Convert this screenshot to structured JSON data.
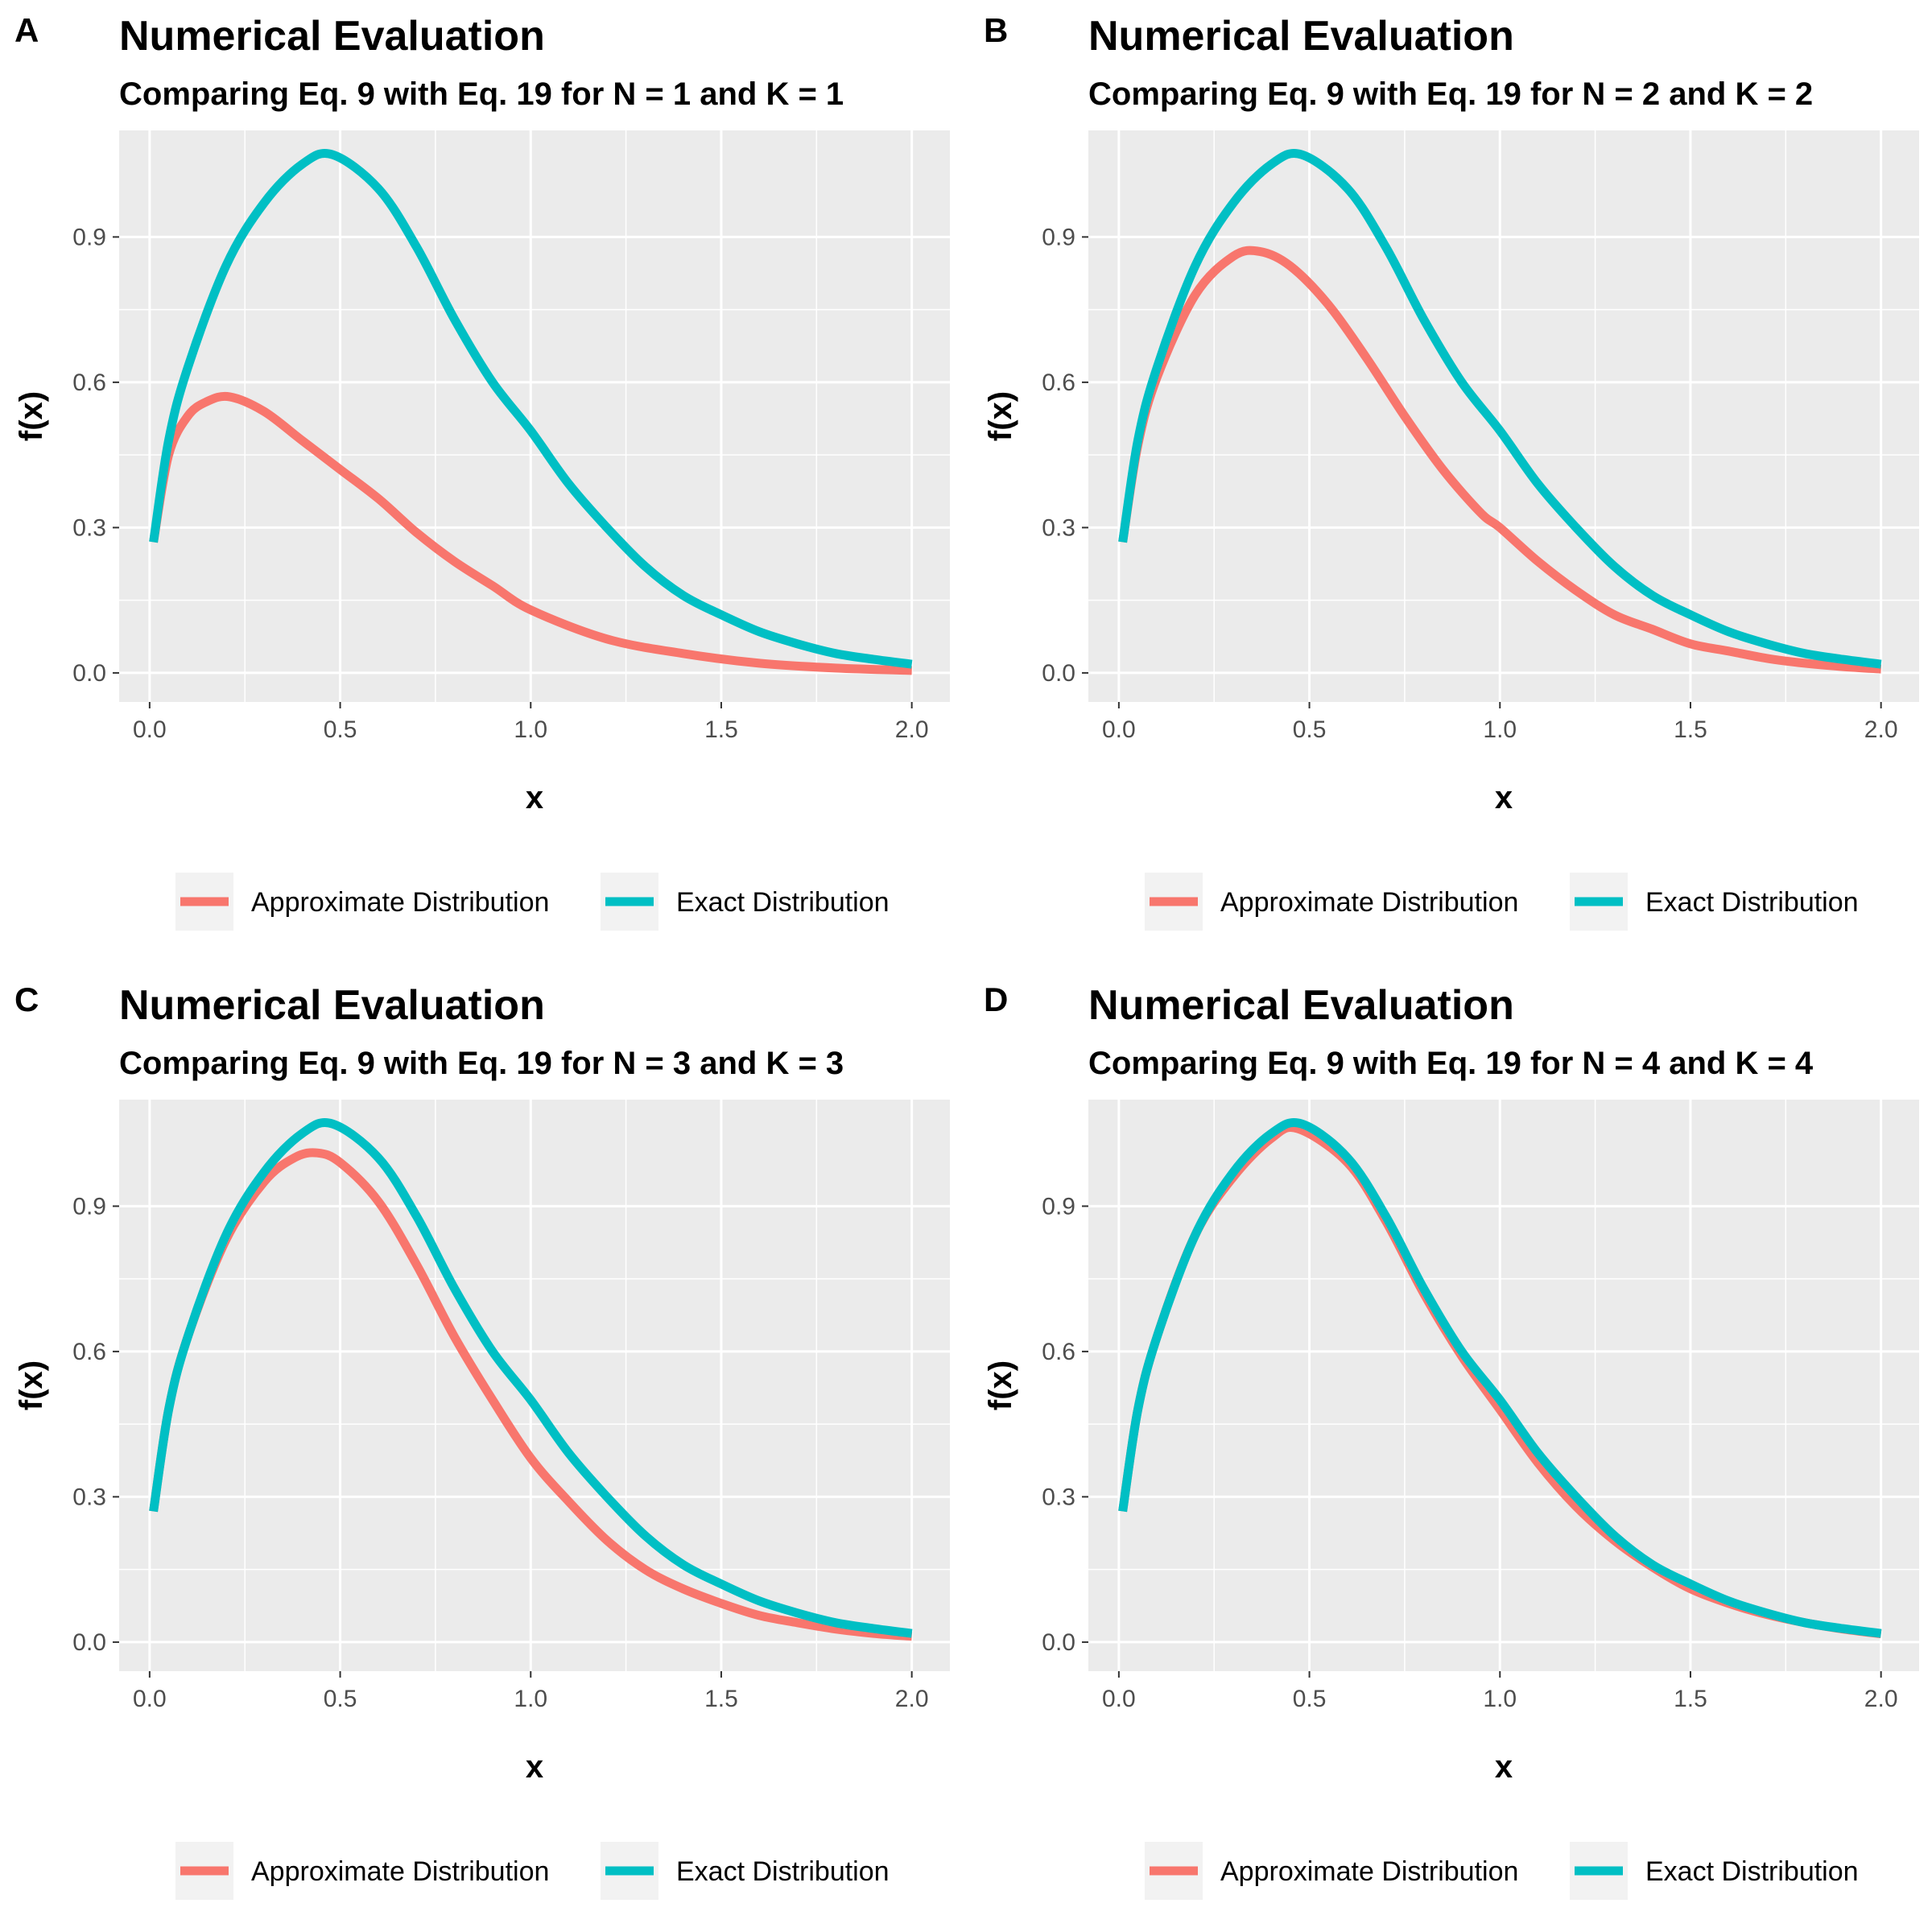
{
  "colors": {
    "approximate": "#F8766D",
    "exact": "#00BFC4",
    "panel_background": "#EBEBEB",
    "grid": "#FFFFFF",
    "legend_key_background": "#F2F2F2"
  },
  "chart_data": [
    {
      "tag": "A",
      "type": "line",
      "title": "Numerical Evaluation",
      "subtitle": "Comparing Eq. 9 with Eq. 19 for N = 1 and K = 1",
      "xlabel": "x",
      "ylabel": "f(x)",
      "xlim": [
        -0.08,
        2.1
      ],
      "ylim": [
        -0.06,
        1.12
      ],
      "x_ticks": [
        0.0,
        0.5,
        1.0,
        1.5,
        2.0
      ],
      "x_tick_labels": [
        "0.0",
        "0.5",
        "1.0",
        "1.5",
        "2.0"
      ],
      "y_ticks": [
        0.0,
        0.3,
        0.6,
        0.9
      ],
      "y_tick_labels": [
        "0.0",
        "0.3",
        "0.6",
        "0.9"
      ],
      "grid": true,
      "legend": {
        "position": "bottom",
        "items": [
          "Approximate Distribution",
          "Exact Distribution"
        ]
      },
      "series": [
        {
          "name": "Approximate Distribution",
          "color_key": "approximate",
          "x": [
            0.01,
            0.05,
            0.1,
            0.15,
            0.21,
            0.3,
            0.4,
            0.5,
            0.6,
            0.7,
            0.8,
            0.9,
            1.0,
            1.2,
            1.4,
            1.6,
            1.8,
            2.0
          ],
          "y": [
            0.27,
            0.45,
            0.53,
            0.56,
            0.57,
            0.54,
            0.48,
            0.42,
            0.36,
            0.29,
            0.23,
            0.18,
            0.13,
            0.07,
            0.04,
            0.02,
            0.01,
            0.005
          ]
        },
        {
          "name": "Exact Distribution",
          "color_key": "exact",
          "x": [
            0.01,
            0.05,
            0.1,
            0.2,
            0.3,
            0.4,
            0.48,
            0.6,
            0.7,
            0.8,
            0.9,
            1.0,
            1.1,
            1.2,
            1.3,
            1.4,
            1.5,
            1.6,
            1.7,
            1.8,
            1.9,
            2.0
          ],
          "y": [
            0.27,
            0.48,
            0.63,
            0.84,
            0.97,
            1.05,
            1.07,
            1.0,
            0.88,
            0.73,
            0.6,
            0.5,
            0.39,
            0.3,
            0.22,
            0.16,
            0.12,
            0.085,
            0.06,
            0.04,
            0.028,
            0.018
          ]
        }
      ]
    },
    {
      "tag": "B",
      "type": "line",
      "title": "Numerical Evaluation",
      "subtitle": "Comparing Eq. 9 with Eq. 19 for N = 2 and K = 2",
      "xlabel": "x",
      "ylabel": "f(x)",
      "xlim": [
        -0.08,
        2.1
      ],
      "ylim": [
        -0.06,
        1.12
      ],
      "x_ticks": [
        0.0,
        0.5,
        1.0,
        1.5,
        2.0
      ],
      "x_tick_labels": [
        "0.0",
        "0.5",
        "1.0",
        "1.5",
        "2.0"
      ],
      "y_ticks": [
        0.0,
        0.3,
        0.6,
        0.9
      ],
      "y_tick_labels": [
        "0.0",
        "0.3",
        "0.6",
        "0.9"
      ],
      "grid": true,
      "legend": {
        "position": "bottom",
        "items": [
          "Approximate Distribution",
          "Exact Distribution"
        ]
      },
      "series": [
        {
          "name": "Approximate Distribution",
          "color_key": "approximate",
          "x": [
            0.01,
            0.05,
            0.1,
            0.2,
            0.3,
            0.37,
            0.45,
            0.55,
            0.65,
            0.75,
            0.85,
            0.95,
            1.0,
            1.1,
            1.2,
            1.3,
            1.4,
            1.5,
            1.6,
            1.7,
            1.8,
            1.9,
            2.0
          ],
          "y": [
            0.27,
            0.47,
            0.61,
            0.78,
            0.86,
            0.87,
            0.84,
            0.76,
            0.65,
            0.53,
            0.42,
            0.33,
            0.3,
            0.23,
            0.17,
            0.12,
            0.09,
            0.06,
            0.045,
            0.03,
            0.02,
            0.013,
            0.008
          ]
        },
        {
          "name": "Exact Distribution",
          "color_key": "exact",
          "x": [
            0.01,
            0.05,
            0.1,
            0.2,
            0.3,
            0.4,
            0.48,
            0.6,
            0.7,
            0.8,
            0.9,
            1.0,
            1.1,
            1.2,
            1.3,
            1.4,
            1.5,
            1.6,
            1.7,
            1.8,
            1.9,
            2.0
          ],
          "y": [
            0.27,
            0.48,
            0.63,
            0.84,
            0.97,
            1.05,
            1.07,
            1.0,
            0.88,
            0.73,
            0.6,
            0.5,
            0.39,
            0.3,
            0.22,
            0.16,
            0.12,
            0.085,
            0.06,
            0.04,
            0.028,
            0.018
          ]
        }
      ]
    },
    {
      "tag": "C",
      "type": "line",
      "title": "Numerical Evaluation",
      "subtitle": "Comparing Eq. 9 with Eq. 19 for N = 3 and K = 3",
      "xlabel": "x",
      "ylabel": "f(x)",
      "xlim": [
        -0.08,
        2.1
      ],
      "ylim": [
        -0.06,
        1.12
      ],
      "x_ticks": [
        0.0,
        0.5,
        1.0,
        1.5,
        2.0
      ],
      "x_tick_labels": [
        "0.0",
        "0.5",
        "1.0",
        "1.5",
        "2.0"
      ],
      "y_ticks": [
        0.0,
        0.3,
        0.6,
        0.9
      ],
      "y_tick_labels": [
        "0.0",
        "0.3",
        "0.6",
        "0.9"
      ],
      "grid": true,
      "legend": {
        "position": "bottom",
        "items": [
          "Approximate Distribution",
          "Exact Distribution"
        ]
      },
      "series": [
        {
          "name": "Approximate Distribution",
          "color_key": "approximate",
          "x": [
            0.01,
            0.05,
            0.1,
            0.2,
            0.3,
            0.38,
            0.44,
            0.5,
            0.6,
            0.7,
            0.8,
            0.9,
            1.0,
            1.1,
            1.2,
            1.3,
            1.4,
            1.5,
            1.6,
            1.7,
            1.8,
            1.9,
            2.0
          ],
          "y": [
            0.27,
            0.48,
            0.63,
            0.83,
            0.95,
            1.0,
            1.01,
            0.99,
            0.91,
            0.78,
            0.63,
            0.5,
            0.38,
            0.29,
            0.21,
            0.15,
            0.11,
            0.08,
            0.055,
            0.04,
            0.027,
            0.018,
            0.012
          ]
        },
        {
          "name": "Exact Distribution",
          "color_key": "exact",
          "x": [
            0.01,
            0.05,
            0.1,
            0.2,
            0.3,
            0.4,
            0.48,
            0.6,
            0.7,
            0.8,
            0.9,
            1.0,
            1.1,
            1.2,
            1.3,
            1.4,
            1.5,
            1.6,
            1.7,
            1.8,
            1.9,
            2.0
          ],
          "y": [
            0.27,
            0.48,
            0.63,
            0.84,
            0.97,
            1.05,
            1.07,
            1.0,
            0.88,
            0.73,
            0.6,
            0.5,
            0.39,
            0.3,
            0.22,
            0.16,
            0.12,
            0.085,
            0.06,
            0.04,
            0.028,
            0.018
          ]
        }
      ]
    },
    {
      "tag": "D",
      "type": "line",
      "title": "Numerical Evaluation",
      "subtitle": "Comparing Eq. 9 with Eq. 19 for N = 4 and K = 4",
      "xlabel": "x",
      "ylabel": "f(x)",
      "xlim": [
        -0.08,
        2.1
      ],
      "ylim": [
        -0.06,
        1.12
      ],
      "x_ticks": [
        0.0,
        0.5,
        1.0,
        1.5,
        2.0
      ],
      "x_tick_labels": [
        "0.0",
        "0.5",
        "1.0",
        "1.5",
        "2.0"
      ],
      "y_ticks": [
        0.0,
        0.3,
        0.6,
        0.9
      ],
      "y_tick_labels": [
        "0.0",
        "0.3",
        "0.6",
        "0.9"
      ],
      "grid": true,
      "legend": {
        "position": "bottom",
        "items": [
          "Approximate Distribution",
          "Exact Distribution"
        ]
      },
      "series": [
        {
          "name": "Approximate Distribution",
          "color_key": "approximate",
          "x": [
            0.01,
            0.05,
            0.1,
            0.2,
            0.3,
            0.4,
            0.47,
            0.6,
            0.7,
            0.8,
            0.9,
            1.0,
            1.1,
            1.2,
            1.3,
            1.4,
            1.5,
            1.6,
            1.7,
            1.8,
            1.9,
            2.0
          ],
          "y": [
            0.27,
            0.48,
            0.63,
            0.84,
            0.96,
            1.04,
            1.06,
            0.99,
            0.87,
            0.72,
            0.59,
            0.48,
            0.37,
            0.28,
            0.21,
            0.155,
            0.11,
            0.08,
            0.057,
            0.04,
            0.027,
            0.017
          ]
        },
        {
          "name": "Exact Distribution",
          "color_key": "exact",
          "x": [
            0.01,
            0.05,
            0.1,
            0.2,
            0.3,
            0.4,
            0.48,
            0.6,
            0.7,
            0.8,
            0.9,
            1.0,
            1.1,
            1.2,
            1.3,
            1.4,
            1.5,
            1.6,
            1.7,
            1.8,
            1.9,
            2.0
          ],
          "y": [
            0.27,
            0.48,
            0.63,
            0.84,
            0.97,
            1.05,
            1.07,
            1.0,
            0.88,
            0.73,
            0.6,
            0.5,
            0.39,
            0.3,
            0.22,
            0.16,
            0.12,
            0.085,
            0.06,
            0.04,
            0.028,
            0.018
          ]
        }
      ]
    }
  ]
}
